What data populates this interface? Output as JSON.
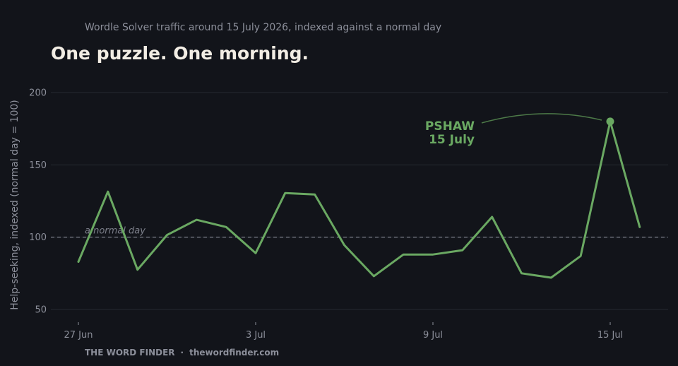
{
  "header": {
    "subtitle": "Wordle Solver traffic around 15 July 2026, indexed against a normal day",
    "title": "One puzzle. One morning."
  },
  "footer": {
    "brand": "THE WORD FINDER",
    "separator": "·",
    "site": "thewordfinder.com"
  },
  "colors": {
    "background": "#12141a",
    "line": "#6aa862",
    "grid": "#262a33",
    "reference": "#8a8d99",
    "text_muted": "#8c8f9a",
    "title": "#f2ede4"
  },
  "chart_data": {
    "type": "line",
    "title": "One puzzle. One morning.",
    "subtitle": "Wordle Solver traffic around 15 July 2026, indexed against a normal day",
    "xlabel": "",
    "ylabel": "Help-seeking, indexed (normal day = 100)",
    "ylim": [
      40,
      205
    ],
    "yticks": [
      50,
      100,
      150,
      200
    ],
    "xticks": [
      {
        "date": "2026-06-27",
        "label": "27 Jun"
      },
      {
        "date": "2026-07-03",
        "label": "3 Jul"
      },
      {
        "date": "2026-07-09",
        "label": "9 Jul"
      },
      {
        "date": "2026-07-15",
        "label": "15 Jul"
      }
    ],
    "grid": true,
    "series": [
      {
        "x": [
          "2026-06-27",
          "2026-06-28",
          "2026-06-29",
          "2026-06-30",
          "2026-07-01",
          "2026-07-02",
          "2026-07-03",
          "2026-07-04",
          "2026-07-05",
          "2026-07-06",
          "2026-07-07",
          "2026-07-08",
          "2026-07-09",
          "2026-07-10",
          "2026-07-11",
          "2026-07-12",
          "2026-07-13",
          "2026-07-14",
          "2026-07-15",
          "2026-07-16"
        ],
        "values": [
          83,
          131.5,
          77.5,
          101.5,
          112,
          107,
          89,
          130.5,
          129.5,
          94.5,
          73,
          88,
          88,
          91,
          114,
          75,
          72,
          87,
          180,
          107
        ]
      }
    ],
    "reference_line": {
      "y": 100,
      "label": "a normal day"
    },
    "annotation": {
      "x": "2026-07-15",
      "y": 180,
      "lines": [
        "PSHAW",
        "15 July"
      ]
    }
  }
}
